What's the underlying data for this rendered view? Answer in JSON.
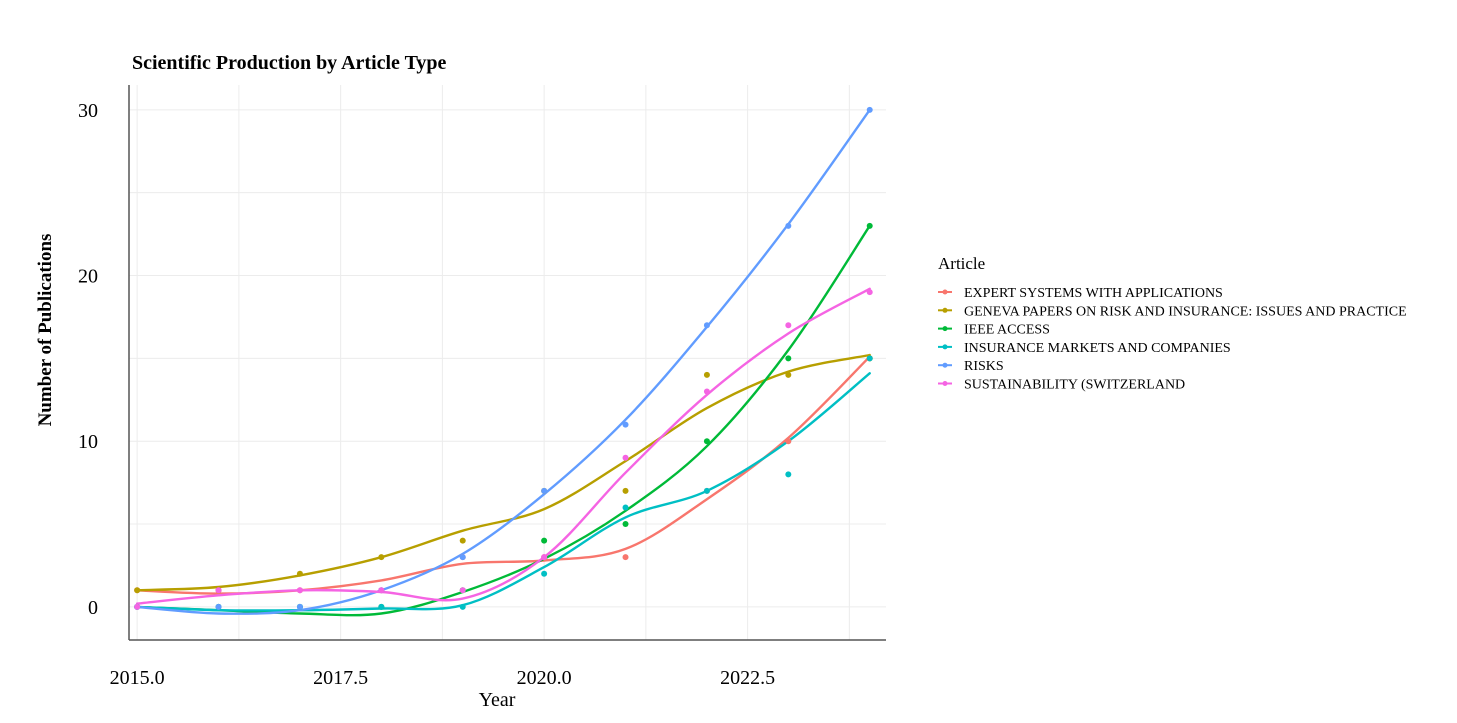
{
  "chart_data": {
    "type": "line",
    "title": "Scientific Production by Article Type",
    "xlabel": "Year",
    "ylabel": "Number of Publications",
    "xlim": [
      2014.9,
      2024.2
    ],
    "ylim": [
      -2,
      31.5
    ],
    "xticks": [
      2015.0,
      2017.5,
      2020.0,
      2022.5
    ],
    "xtick_labels": [
      "2015.0",
      "2017.5",
      "2020.0",
      "2022.5"
    ],
    "yticks": [
      0,
      10,
      20,
      30
    ],
    "ytick_labels": [
      "0",
      "10",
      "20",
      "30"
    ],
    "grid": true,
    "legend": {
      "title": "Article",
      "position": "right"
    },
    "x": [
      2015,
      2016,
      2017,
      2018,
      2019,
      2020,
      2021,
      2022,
      2023,
      2024
    ],
    "series": [
      {
        "name": "EXPERT SYSTEMS WITH APPLICATIONS",
        "color": "#F8766D",
        "values": [
          1,
          1,
          1,
          1,
          3,
          3,
          3,
          7,
          10,
          15
        ],
        "smooth": [
          [
            2015,
            1
          ],
          [
            2016,
            0.8
          ],
          [
            2017,
            1
          ],
          [
            2018,
            1.6
          ],
          [
            2019,
            2.6
          ],
          [
            2020,
            2.8
          ],
          [
            2021,
            3.5
          ],
          [
            2022,
            6.5
          ],
          [
            2023,
            10.2
          ],
          [
            2024,
            15.1
          ]
        ]
      },
      {
        "name": "GENEVA PAPERS ON RISK AND INSURANCE: ISSUES AND PRACTICE",
        "color": "#B79F00",
        "values": [
          1,
          1,
          2,
          3,
          4,
          7,
          7,
          14,
          14,
          15
        ],
        "smooth": [
          [
            2015,
            1
          ],
          [
            2016,
            1.2
          ],
          [
            2017,
            1.9
          ],
          [
            2018,
            3
          ],
          [
            2019,
            4.6
          ],
          [
            2020,
            5.9
          ],
          [
            2021,
            8.8
          ],
          [
            2022,
            12
          ],
          [
            2023,
            14.2
          ],
          [
            2024,
            15.2
          ]
        ]
      },
      {
        "name": "IEEE ACCESS",
        "color": "#00BA38",
        "values": [
          0,
          0,
          0,
          0,
          1,
          4,
          5,
          10,
          15,
          23
        ],
        "smooth": [
          [
            2015,
            0
          ],
          [
            2016,
            -0.2
          ],
          [
            2017,
            -0.4
          ],
          [
            2018,
            -0.4
          ],
          [
            2019,
            0.9
          ],
          [
            2020,
            2.9
          ],
          [
            2021,
            5.8
          ],
          [
            2022,
            9.7
          ],
          [
            2023,
            15.5
          ],
          [
            2024,
            23
          ]
        ]
      },
      {
        "name": "INSURANCE MARKETS AND COMPANIES",
        "color": "#00BFC4",
        "values": [
          0,
          0,
          0,
          0,
          0,
          2,
          6,
          7,
          8,
          15
        ],
        "smooth": [
          [
            2015,
            0
          ],
          [
            2016,
            -0.2
          ],
          [
            2017,
            -0.2
          ],
          [
            2018,
            -0.1
          ],
          [
            2019,
            0.1
          ],
          [
            2020,
            2.4
          ],
          [
            2021,
            5.4
          ],
          [
            2022,
            7
          ],
          [
            2023,
            10
          ],
          [
            2024,
            14.1
          ]
        ]
      },
      {
        "name": "RISKS",
        "color": "#619CFF",
        "values": [
          0,
          0,
          0,
          1,
          3,
          7,
          11,
          17,
          23,
          30
        ],
        "smooth": [
          [
            2015,
            0
          ],
          [
            2016,
            -0.4
          ],
          [
            2017,
            -0.2
          ],
          [
            2018,
            1
          ],
          [
            2019,
            3.2
          ],
          [
            2020,
            6.8
          ],
          [
            2021,
            11.3
          ],
          [
            2022,
            16.9
          ],
          [
            2023,
            23.1
          ],
          [
            2024,
            30
          ]
        ]
      },
      {
        "name": "SUSTAINABILITY (SWITZERLAND",
        "color": "#F564E3",
        "values": [
          0,
          1,
          1,
          1,
          1,
          3,
          9,
          13,
          17,
          19
        ],
        "smooth": [
          [
            2015,
            0.2
          ],
          [
            2016,
            0.7
          ],
          [
            2017,
            1
          ],
          [
            2018,
            0.9
          ],
          [
            2019,
            0.5
          ],
          [
            2020,
            3
          ],
          [
            2021,
            8.1
          ],
          [
            2022,
            12.8
          ],
          [
            2023,
            16.5
          ],
          [
            2024,
            19.2
          ]
        ]
      }
    ]
  }
}
